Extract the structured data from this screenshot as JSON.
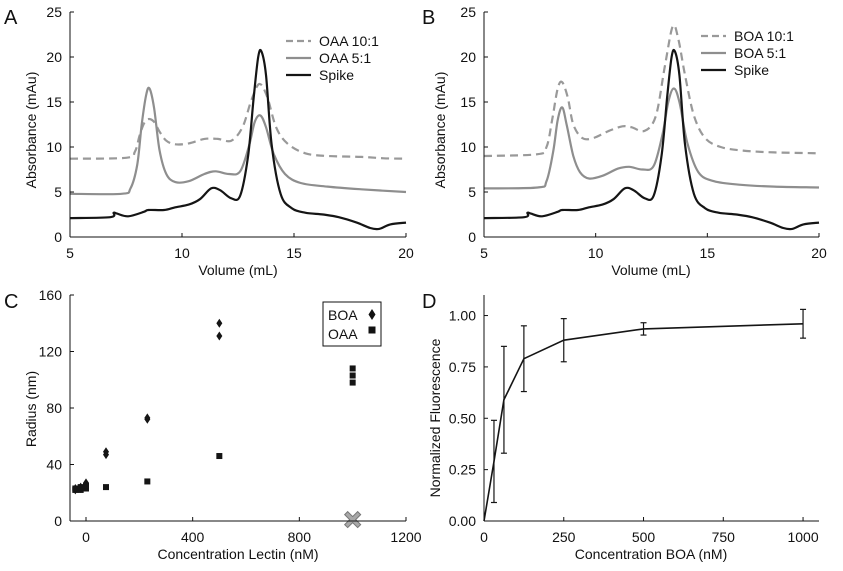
{
  "panel_letters": [
    "A",
    "B",
    "C",
    "D"
  ],
  "colors": {
    "line": "#151515",
    "light": "#8e8e8e",
    "dash": "#999999",
    "marker_x": "#a8a8a8",
    "axis": "#111111"
  },
  "chart_data": [
    {
      "panel": "A",
      "type": "line",
      "xlabel": "Volume (mL)",
      "ylabel": "Absorbance (mAu)",
      "xlim": [
        5,
        20
      ],
      "ylim": [
        0,
        25
      ],
      "xticks": [
        5,
        10,
        15,
        20
      ],
      "yticks": [
        0,
        5,
        10,
        15,
        20,
        25
      ],
      "legend_position": "top-right",
      "series": [
        {
          "name": "OAA 10:1",
          "style": "dashed",
          "x": [
            5,
            7.5,
            7.9,
            8.1,
            8.3,
            8.5,
            8.75,
            9.0,
            9.3,
            9.7,
            10.3,
            11,
            11.6,
            12.2,
            12.7,
            13.1,
            13.45,
            13.8,
            14.2,
            14.7,
            15.5,
            16.5,
            18,
            19,
            20
          ],
          "y": [
            8.7,
            8.8,
            9.5,
            11.2,
            12.6,
            13.1,
            12.8,
            11.7,
            10.7,
            10.3,
            10.4,
            10.9,
            10.9,
            10.7,
            12.2,
            15.2,
            17.0,
            15.6,
            12.2,
            10.4,
            9.3,
            9.0,
            8.9,
            8.75,
            8.7
          ]
        },
        {
          "name": "OAA 5:1",
          "style": "solid-light",
          "x": [
            5,
            7.3,
            7.7,
            8.0,
            8.2,
            8.4,
            8.55,
            8.75,
            9.0,
            9.3,
            9.7,
            10.3,
            11,
            11.5,
            12.1,
            12.6,
            13.0,
            13.25,
            13.5,
            13.75,
            14.1,
            14.6,
            15.3,
            16.5,
            18,
            20
          ],
          "y": [
            4.8,
            4.8,
            5.4,
            8.0,
            12.5,
            15.8,
            16.5,
            14.4,
            9.6,
            7.0,
            6.1,
            6.2,
            7.0,
            7.3,
            7.0,
            7.3,
            10.2,
            12.8,
            13.5,
            12.2,
            9.2,
            7.0,
            6.0,
            5.6,
            5.3,
            5.0
          ]
        },
        {
          "name": "Spike",
          "style": "solid-dark",
          "x": [
            5,
            6.8,
            6.95,
            7.1,
            7.6,
            8.3,
            8.5,
            9.2,
            9.7,
            10.3,
            10.8,
            11.3,
            11.7,
            12.2,
            12.6,
            12.95,
            13.2,
            13.4,
            13.55,
            13.75,
            14.0,
            14.4,
            14.9,
            15.5,
            16.3,
            17.0,
            17.8,
            18.4,
            18.8,
            19.3,
            20
          ],
          "y": [
            2.1,
            2.2,
            2.7,
            2.6,
            2.3,
            2.8,
            3.0,
            3.0,
            3.3,
            3.6,
            4.2,
            5.4,
            5.2,
            4.3,
            4.6,
            9.0,
            15.5,
            20.0,
            20.6,
            18.0,
            10.3,
            4.8,
            3.2,
            2.7,
            2.5,
            2.2,
            1.6,
            1.0,
            0.9,
            1.4,
            1.6
          ]
        }
      ]
    },
    {
      "panel": "B",
      "type": "line",
      "xlabel": "Volume (mL)",
      "ylabel": "Absorbance (mAu)",
      "xlim": [
        5,
        20
      ],
      "ylim": [
        0,
        25
      ],
      "xticks": [
        5,
        10,
        15,
        20
      ],
      "yticks": [
        0,
        5,
        10,
        15,
        20,
        25
      ],
      "legend_position": "top-right",
      "series": [
        {
          "name": "BOA 10:1",
          "style": "dashed",
          "x": [
            5,
            7.4,
            7.8,
            8.05,
            8.3,
            8.5,
            8.75,
            9.0,
            9.4,
            9.9,
            10.6,
            11.2,
            11.6,
            12.2,
            12.7,
            13.1,
            13.45,
            13.7,
            14.0,
            14.4,
            14.9,
            15.6,
            16.6,
            18,
            20
          ],
          "y": [
            9.0,
            9.2,
            10.0,
            13.0,
            16.5,
            17.2,
            15.5,
            12.5,
            11.0,
            11.0,
            11.8,
            12.3,
            12.2,
            11.8,
            13.5,
            19.0,
            23.4,
            22.0,
            18.0,
            13.5,
            11.0,
            10.0,
            9.6,
            9.4,
            9.3
          ]
        },
        {
          "name": "BOA 5:1",
          "style": "solid-light",
          "x": [
            5,
            7.4,
            7.8,
            8.1,
            8.3,
            8.5,
            8.7,
            9.0,
            9.3,
            9.7,
            10.3,
            11.0,
            11.5,
            12.1,
            12.6,
            13.0,
            13.25,
            13.5,
            13.75,
            14.1,
            14.6,
            15.3,
            16.5,
            18,
            20
          ],
          "y": [
            5.4,
            5.5,
            6.2,
            9.5,
            13.0,
            14.4,
            12.5,
            9.0,
            7.2,
            6.5,
            6.8,
            7.6,
            7.8,
            7.5,
            7.9,
            11.5,
            15.0,
            16.5,
            15.0,
            10.5,
            7.2,
            6.2,
            5.8,
            5.6,
            5.5
          ]
        },
        {
          "name": "Spike",
          "style": "solid-dark",
          "x": [
            5,
            6.8,
            6.95,
            7.1,
            7.6,
            8.3,
            8.5,
            9.2,
            9.7,
            10.3,
            10.8,
            11.3,
            11.7,
            12.2,
            12.6,
            12.95,
            13.2,
            13.4,
            13.55,
            13.75,
            14.0,
            14.4,
            14.9,
            15.5,
            16.3,
            17.0,
            17.8,
            18.4,
            18.8,
            19.3,
            20
          ],
          "y": [
            2.1,
            2.2,
            2.7,
            2.6,
            2.3,
            2.8,
            3.0,
            3.0,
            3.3,
            3.6,
            4.2,
            5.4,
            5.2,
            4.3,
            4.6,
            9.0,
            15.5,
            20.0,
            20.6,
            18.0,
            10.3,
            4.8,
            3.2,
            2.7,
            2.5,
            2.2,
            1.6,
            1.0,
            0.9,
            1.4,
            1.6
          ]
        }
      ]
    },
    {
      "panel": "C",
      "type": "scatter",
      "xlabel": "Concentration Lectin (nM)",
      "ylabel": "Radius (nm)",
      "xlim": [
        -60,
        1200
      ],
      "ylim": [
        0,
        160
      ],
      "xticks": [
        0,
        400,
        800,
        1200
      ],
      "yticks": [
        0,
        40,
        80,
        120,
        160
      ],
      "legend_position": "top-right",
      "series": [
        {
          "name": "BOA",
          "marker": "diamond",
          "x": [
            -40,
            -40,
            -20,
            -20,
            0,
            0,
            0,
            75,
            75,
            230,
            230,
            500,
            500
          ],
          "y": [
            22,
            23,
            23,
            24,
            24,
            26,
            27,
            47,
            49,
            72,
            73,
            131,
            140
          ]
        },
        {
          "name": "OAA",
          "marker": "square",
          "x": [
            -40,
            -40,
            -20,
            -20,
            0,
            0,
            75,
            230,
            500,
            1000,
            1000,
            1000
          ],
          "y": [
            22,
            23,
            22,
            24,
            23,
            25,
            24,
            28,
            46,
            98,
            103,
            108
          ]
        }
      ],
      "annotations": [
        {
          "marker": "x",
          "x": 1000,
          "y": 1
        }
      ]
    },
    {
      "panel": "D",
      "type": "line",
      "xlabel": "Concentration BOA (nM)",
      "ylabel": "Normalized Fluorescence",
      "xlim": [
        0,
        1050
      ],
      "ylim": [
        0,
        1.1
      ],
      "xticks": [
        0,
        250,
        500,
        750,
        1000
      ],
      "ytick_labels": [
        "0.00",
        "0.25",
        "0.50",
        "0.75",
        "1.00"
      ],
      "yticks": [
        0,
        0.25,
        0.5,
        0.75,
        1.0
      ],
      "series": [
        {
          "name": "BOA",
          "x": [
            0,
            31.25,
            62.5,
            125,
            250,
            500,
            1000
          ],
          "y": [
            0.0,
            0.29,
            0.59,
            0.79,
            0.88,
            0.935,
            0.96
          ],
          "err": [
            0,
            0.2,
            0.26,
            0.16,
            0.105,
            0.03,
            0.07
          ]
        }
      ]
    }
  ]
}
